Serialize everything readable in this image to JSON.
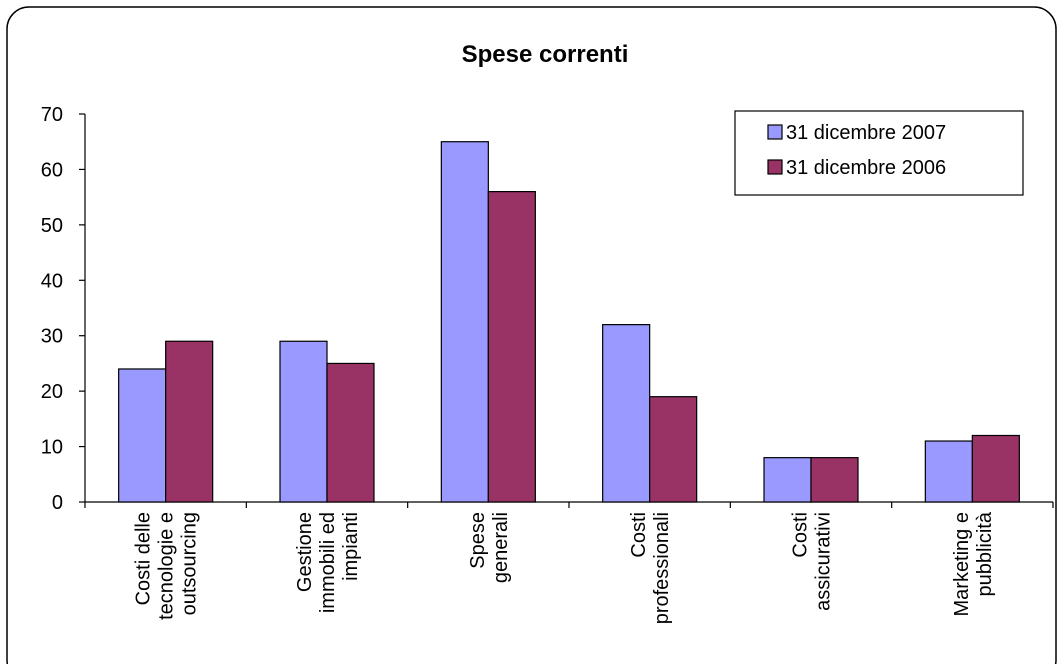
{
  "chart_data": {
    "type": "bar",
    "title": "Spese correnti",
    "xlabel": "",
    "ylabel": "",
    "ylim": [
      0,
      70
    ],
    "yticks": [
      0,
      10,
      20,
      30,
      40,
      50,
      60,
      70
    ],
    "grid": false,
    "legend_position": "top-right",
    "categories": [
      [
        "Costi delle",
        "tecnologie e",
        "outsourcing"
      ],
      [
        "Gestione",
        "immobili ed",
        "impianti"
      ],
      [
        "Spese",
        "generali"
      ],
      [
        "Costi",
        "professionali"
      ],
      [
        "Costi",
        "assicurativi"
      ],
      [
        "Marketing e",
        "pubblicità"
      ]
    ],
    "series": [
      {
        "name": "31 dicembre 2007",
        "color": "#9999FF",
        "values": [
          24,
          29,
          65,
          32,
          8,
          11
        ]
      },
      {
        "name": "31 dicembre 2006",
        "color": "#993366",
        "values": [
          29,
          25,
          56,
          19,
          8,
          12
        ]
      }
    ]
  }
}
